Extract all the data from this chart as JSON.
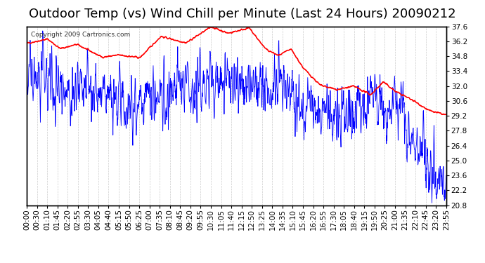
{
  "title": "Outdoor Temp (vs) Wind Chill per Minute (Last 24 Hours) 20090212",
  "copyright": "Copyright 2009 Cartronics.com",
  "y_min": 20.8,
  "y_max": 37.6,
  "y_ticks": [
    20.8,
    22.2,
    23.6,
    25.0,
    26.4,
    27.8,
    29.2,
    30.6,
    32.0,
    33.4,
    34.8,
    36.2,
    37.6
  ],
  "bg_color": "#ffffff",
  "plot_bg_color": "#ffffff",
  "grid_color": "#cccccc",
  "red_color": "#ff0000",
  "blue_color": "#0000ff",
  "title_fontsize": 13,
  "tick_fontsize": 7.5,
  "x_tick_labels": [
    "00:00",
    "00:30",
    "01:10",
    "01:45",
    "02:20",
    "02:55",
    "03:30",
    "04:05",
    "04:40",
    "05:15",
    "05:50",
    "06:25",
    "07:00",
    "07:35",
    "08:10",
    "08:45",
    "09:20",
    "09:55",
    "10:30",
    "11:05",
    "11:40",
    "12:15",
    "12:50",
    "13:25",
    "14:00",
    "14:35",
    "15:10",
    "15:45",
    "16:20",
    "16:55",
    "17:30",
    "18:05",
    "18:40",
    "19:15",
    "19:50",
    "20:25",
    "21:00",
    "21:35",
    "22:10",
    "22:45",
    "23:20",
    "23:55"
  ],
  "n_minutes": 1440
}
